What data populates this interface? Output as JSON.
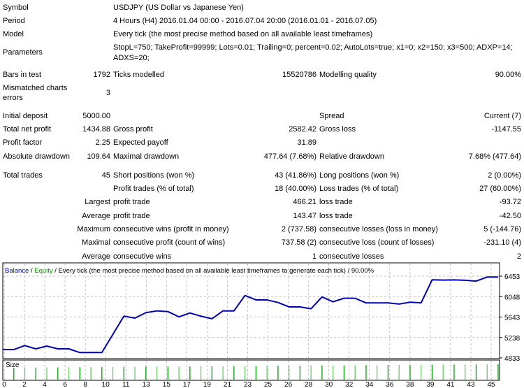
{
  "report": {
    "symbol": {
      "label": "Symbol",
      "value": "USDJPY (US Dollar vs Japanese Yen)"
    },
    "period": {
      "label": "Period",
      "value": "4 Hours (H4) 2016.01.04 00:00 - 2016.07.04 20:00 (2016.01.01 - 2016.07.05)"
    },
    "model": {
      "label": "Model",
      "value": "Every tick (the most precise method based on all available least timeframes)"
    },
    "parameters": {
      "label": "Parameters",
      "line1": "StopL=750; TakeProfit=99999; Lots=0.01; Trailing=0; percent=0.02; AutoLots=true; x1=0; x2=150; x3=500; ADXP=14;",
      "line2": "ADXS=20;"
    },
    "bars_in_test": {
      "label": "Bars in test",
      "value": "1792"
    },
    "ticks_modelled": {
      "label": "Ticks modelled",
      "value": "15520786"
    },
    "modelling_quality": {
      "label": "Modelling quality",
      "value": "90.00%"
    },
    "mismatched": {
      "label1": "Mismatched charts",
      "label2": "errors",
      "value": "3"
    },
    "initial_deposit": {
      "label": "Initial deposit",
      "value": "5000.00"
    },
    "spread": {
      "label": "Spread",
      "value": "Current (7)"
    },
    "total_net_profit": {
      "label": "Total net profit",
      "value": "1434.88"
    },
    "gross_profit": {
      "label": "Gross profit",
      "value": "2582.42"
    },
    "gross_loss": {
      "label": "Gross loss",
      "value": "-1147.55"
    },
    "profit_factor": {
      "label": "Profit factor",
      "value": "2.25"
    },
    "expected_payoff": {
      "label": "Expected payoff",
      "value": "31.89"
    },
    "absolute_drawdown": {
      "label": "Absolute drawdown",
      "value": "109.64"
    },
    "maximal_drawdown": {
      "label": "Maximal drawdown",
      "value": "477.64 (7.68%)"
    },
    "relative_drawdown": {
      "label": "Relative drawdown",
      "value": "7.68% (477.64)"
    },
    "total_trades": {
      "label": "Total trades",
      "value": "45"
    },
    "short_positions": {
      "label": "Short positions (won %)",
      "value": "43 (41.86%)"
    },
    "long_positions": {
      "label": "Long positions (won %)",
      "value": "2 (0.00%)"
    },
    "profit_trades": {
      "label": "Profit trades (% of total)",
      "value": "18 (40.00%)"
    },
    "loss_trades": {
      "label": "Loss trades (% of total)",
      "value": "27 (60.00%)"
    },
    "largest": {
      "prefix": "Largest",
      "profit_label": "profit trade",
      "profit_value": "466.21",
      "loss_label": "loss trade",
      "loss_value": "-93.72"
    },
    "average": {
      "prefix": "Average",
      "profit_label": "profit trade",
      "profit_value": "143.47",
      "loss_label": "loss trade",
      "loss_value": "-42.50"
    },
    "maximum": {
      "prefix": "Maximum",
      "wins_label": "consecutive wins (profit in money)",
      "wins_value": "2 (737.58)",
      "losses_label": "consecutive losses (loss in money)",
      "losses_value": "5 (-144.76)"
    },
    "maximal": {
      "prefix": "Maximal",
      "profit_label": "consecutive profit (count of wins)",
      "profit_value": "737.58 (2)",
      "loss_label": "consecutive loss (count of losses)",
      "loss_value": "-231.10 (4)"
    },
    "average_consecutive": {
      "prefix": "Average",
      "wins_label": "consecutive wins",
      "wins_value": "1",
      "losses_label": "consecutive losses",
      "losses_value": "2"
    }
  },
  "chart_data": {
    "type": "line",
    "legend": {
      "balance": "Balance",
      "sep1": " / ",
      "equity": "Equity",
      "rest": " / Every tick (the most precise method based on all available least timeframes to generate each tick) / 90.00%"
    },
    "colors": {
      "balance": "#0000b0",
      "equity": "#00a000",
      "size": "#00a000",
      "grid": "#c0c0c0"
    },
    "size_pane_label": "Size",
    "grid": true,
    "ylim": [
      4833,
      6453
    ],
    "y_ticks": [
      "6453",
      "6048",
      "5643",
      "5238",
      "4833"
    ],
    "x_tick_labels": [
      "0",
      "2",
      "4",
      "6",
      "8",
      "10",
      "11",
      "13",
      "15",
      "17",
      "19",
      "21",
      "23",
      "25",
      "26",
      "28",
      "30",
      "32",
      "34",
      "36",
      "38",
      "39",
      "41",
      "43",
      "45"
    ],
    "xlim": [
      0,
      45
    ],
    "series": [
      {
        "name": "Balance",
        "x": [
          0,
          1,
          2,
          3,
          4,
          5,
          6,
          7,
          8,
          9,
          10,
          11,
          12,
          13,
          14,
          15,
          16,
          17,
          18,
          19,
          20,
          21,
          22,
          23,
          24,
          25,
          26,
          27,
          28,
          29,
          30,
          31,
          32,
          33,
          34,
          35,
          36,
          37,
          38,
          39,
          40,
          41,
          42,
          43,
          44,
          45
        ],
        "values": [
          5000,
          4999,
          5078,
          5013,
          5068,
          5013,
          5013,
          4940,
          4940,
          4940,
          5300,
          5660,
          5622,
          5729,
          5765,
          5751,
          5646,
          5724,
          5660,
          5609,
          5765,
          5765,
          6070,
          5983,
          5983,
          5931,
          5844,
          5844,
          5807,
          6042,
          5945,
          6015,
          6015,
          5923,
          5923,
          5923,
          5900,
          5937,
          5923,
          6380,
          6375,
          6378,
          6372,
          6355,
          6435,
          6435
        ]
      }
    ]
  }
}
